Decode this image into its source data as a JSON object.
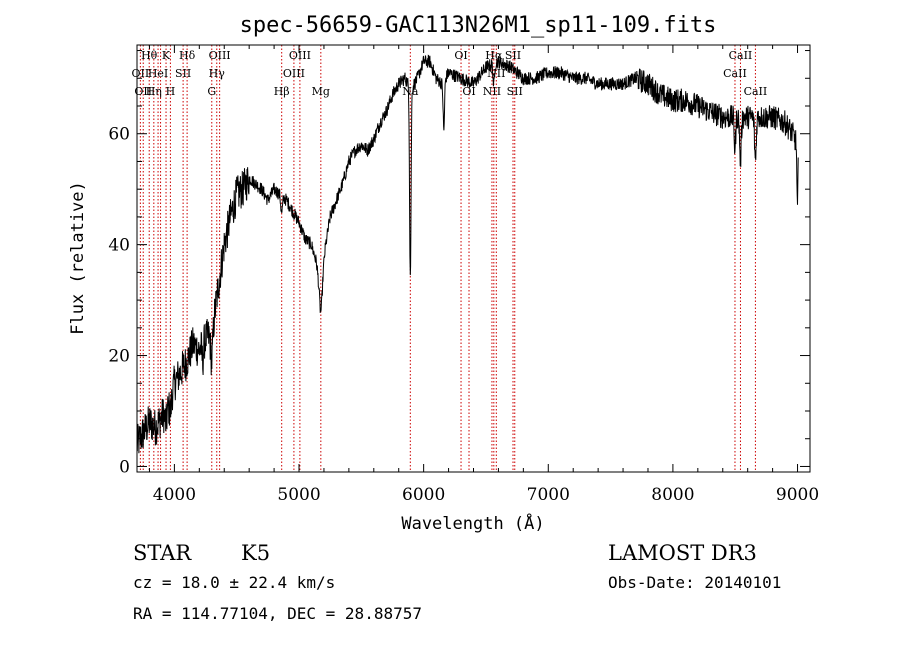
{
  "chart_data": {
    "type": "line",
    "title": "spec-56659-GAC113N26M1_sp11-109.fits",
    "xlabel": "Wavelength (Å)",
    "ylabel": "Flux (relative)",
    "xlim": [
      3700,
      9100
    ],
    "ylim": [
      -1,
      76
    ],
    "x_ticks": [
      4000,
      5000,
      6000,
      7000,
      8000,
      9000
    ],
    "y_ticks": [
      0,
      20,
      40,
      60
    ],
    "anchors": [
      [
        3700,
        4
      ],
      [
        3750,
        6
      ],
      [
        3800,
        8
      ],
      [
        3850,
        7
      ],
      [
        3900,
        9
      ],
      [
        3950,
        11
      ],
      [
        4000,
        15
      ],
      [
        4050,
        17
      ],
      [
        4100,
        19
      ],
      [
        4150,
        22
      ],
      [
        4200,
        21
      ],
      [
        4250,
        23
      ],
      [
        4300,
        24
      ],
      [
        4350,
        32
      ],
      [
        4400,
        40
      ],
      [
        4450,
        45
      ],
      [
        4500,
        49
      ],
      [
        4550,
        50
      ],
      [
        4600,
        52
      ],
      [
        4650,
        51
      ],
      [
        4700,
        50
      ],
      [
        4750,
        48
      ],
      [
        4800,
        50
      ],
      [
        4850,
        49
      ],
      [
        4900,
        48
      ],
      [
        4950,
        46
      ],
      [
        5000,
        44
      ],
      [
        5050,
        41
      ],
      [
        5100,
        40
      ],
      [
        5150,
        36
      ],
      [
        5200,
        38
      ],
      [
        5250,
        45
      ],
      [
        5300,
        48
      ],
      [
        5350,
        51
      ],
      [
        5400,
        55
      ],
      [
        5450,
        57
      ],
      [
        5500,
        58
      ],
      [
        5550,
        57
      ],
      [
        5600,
        59
      ],
      [
        5650,
        62
      ],
      [
        5700,
        64
      ],
      [
        5750,
        67
      ],
      [
        5800,
        69
      ],
      [
        5850,
        70
      ],
      [
        5900,
        68
      ],
      [
        5950,
        70
      ],
      [
        6000,
        73
      ],
      [
        6050,
        73
      ],
      [
        6100,
        70
      ],
      [
        6150,
        69
      ],
      [
        6200,
        71
      ],
      [
        6300,
        70
      ],
      [
        6400,
        69
      ],
      [
        6500,
        72
      ],
      [
        6600,
        73
      ],
      [
        6700,
        72
      ],
      [
        6800,
        70
      ],
      [
        6900,
        70
      ],
      [
        7000,
        71
      ],
      [
        7100,
        71
      ],
      [
        7200,
        70
      ],
      [
        7300,
        70
      ],
      [
        7400,
        69
      ],
      [
        7500,
        69
      ],
      [
        7600,
        69
      ],
      [
        7700,
        70
      ],
      [
        7800,
        69
      ],
      [
        7900,
        67
      ],
      [
        8000,
        66
      ],
      [
        8100,
        66
      ],
      [
        8200,
        65
      ],
      [
        8300,
        64
      ],
      [
        8400,
        63
      ],
      [
        8500,
        63
      ],
      [
        8600,
        63
      ],
      [
        8700,
        63
      ],
      [
        8800,
        63
      ],
      [
        8900,
        62
      ],
      [
        8960,
        60
      ],
      [
        9000,
        58
      ]
    ],
    "absorption_features": [
      {
        "center": 3933,
        "width": 12,
        "depth": 2.5
      },
      {
        "center": 3968,
        "width": 12,
        "depth": 2.5
      },
      {
        "center": 4227,
        "width": 8,
        "depth": 3
      },
      {
        "center": 4300,
        "width": 12,
        "depth": 5
      },
      {
        "center": 4861,
        "width": 10,
        "depth": 3
      },
      {
        "center": 5175,
        "width": 18,
        "depth": 9
      },
      {
        "center": 5893,
        "width": 8,
        "depth": 34
      },
      {
        "center": 6162,
        "width": 8,
        "depth": 9
      },
      {
        "center": 6563,
        "width": 8,
        "depth": 4
      },
      {
        "center": 8498,
        "width": 8,
        "depth": 6
      },
      {
        "center": 8542,
        "width": 9,
        "depth": 8
      },
      {
        "center": 8662,
        "width": 9,
        "depth": 8
      },
      {
        "center": 8999,
        "width": 6,
        "depth": 12
      }
    ],
    "lines": [
      {
        "w": 3727,
        "label": "OII",
        "row": 1
      },
      {
        "w": 3750,
        "label": "OII",
        "row": 2
      },
      {
        "w": 3798,
        "label": "Hθ",
        "row": 0
      },
      {
        "w": 3835,
        "label": "Hη",
        "row": 2
      },
      {
        "w": 3869,
        "label": "HeI",
        "row": 1
      },
      {
        "w": 3889,
        "label": "",
        "row": 0
      },
      {
        "w": 3933,
        "label": "K",
        "row": 0
      },
      {
        "w": 3968,
        "label": "H",
        "row": 2
      },
      {
        "w": 4070,
        "label": "SII",
        "row": 1
      },
      {
        "w": 4102,
        "label": "Hδ",
        "row": 0
      },
      {
        "w": 4300,
        "label": "G",
        "row": 2
      },
      {
        "w": 4340,
        "label": "Hγ",
        "row": 1
      },
      {
        "w": 4363,
        "label": "OIII",
        "row": 0
      },
      {
        "w": 4861,
        "label": "Hβ",
        "row": 2
      },
      {
        "w": 4959,
        "label": "OIII",
        "row": 1
      },
      {
        "w": 5007,
        "label": "OIII",
        "row": 0
      },
      {
        "w": 5175,
        "label": "Mg",
        "row": 2
      },
      {
        "w": 5893,
        "label": "Na",
        "row": 2
      },
      {
        "w": 6300,
        "label": "OI",
        "row": 0
      },
      {
        "w": 6364,
        "label": "OI",
        "row": 2
      },
      {
        "w": 6548,
        "label": "NII",
        "row": 2
      },
      {
        "w": 6563,
        "label": "Hα",
        "row": 0
      },
      {
        "w": 6583,
        "label": "NII",
        "row": 1
      },
      {
        "w": 6717,
        "label": "SII",
        "row": 0
      },
      {
        "w": 6731,
        "label": "SII",
        "row": 2
      },
      {
        "w": 8498,
        "label": "CaII",
        "row": 1
      },
      {
        "w": 8542,
        "label": "CaII",
        "row": 0
      },
      {
        "w": 8662,
        "label": "CaII",
        "row": 2
      }
    ],
    "line_color": "#000000",
    "marker_color": "#cc0000"
  },
  "info": {
    "class": "STAR",
    "subclass": "K5",
    "survey": "LAMOST DR3",
    "redshift": "cz =  18.0 ± 22.4 km/s",
    "obs_date": "Obs-Date: 20140101",
    "coords": "RA = 114.77104, DEC =  28.88757"
  }
}
